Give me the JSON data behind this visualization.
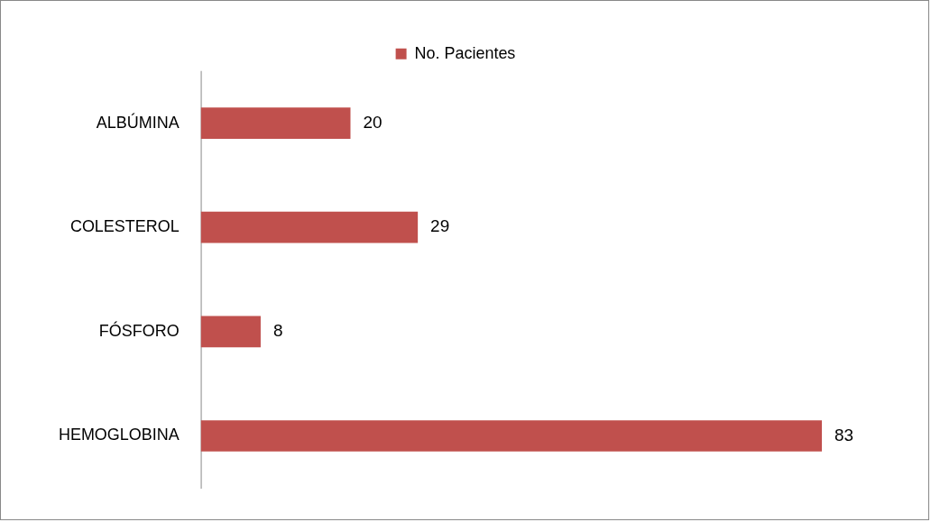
{
  "chart_data": {
    "type": "bar",
    "orientation": "horizontal",
    "categories": [
      "ALBÚMINA",
      "COLESTEROL",
      "FÓSFORO",
      "HEMOGLOBINA"
    ],
    "series": [
      {
        "name": "No. Pacientes",
        "color": "#c0504d",
        "values": [
          20,
          29,
          8,
          83
        ]
      }
    ],
    "data_labels": true,
    "legend": "top"
  }
}
